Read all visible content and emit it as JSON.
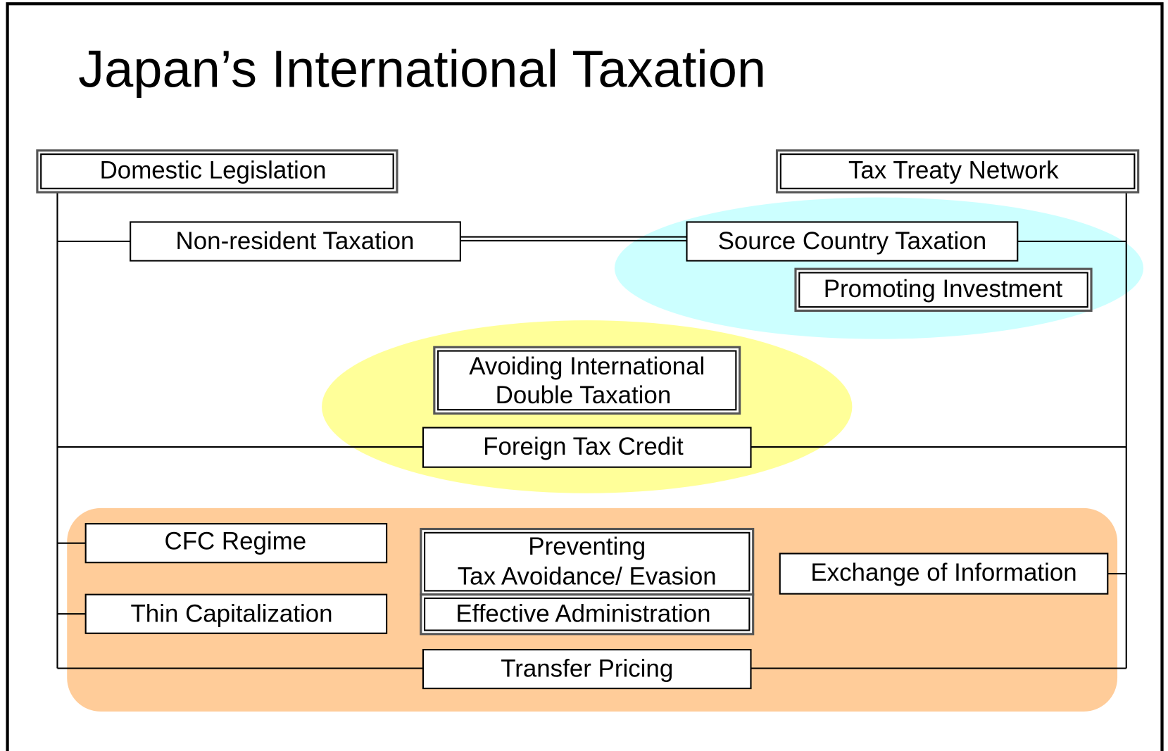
{
  "title": "Japan’s International Taxation",
  "nodes": [
    {
      "label": [
        "Domestic Legislation"
      ]
    },
    {
      "label": [
        "Tax Treaty Network"
      ]
    },
    {
      "label": [
        "Non-resident Taxation"
      ]
    },
    {
      "label": [
        "Source Country Taxation"
      ]
    },
    {
      "label": [
        "Promoting Investment"
      ]
    },
    {
      "label": [
        "Avoiding International",
        "Double Taxation"
      ]
    },
    {
      "label": [
        "Foreign Tax Credit"
      ]
    },
    {
      "label": [
        "CFC Regime"
      ]
    },
    {
      "label": [
        "Thin Capitalization"
      ]
    },
    {
      "label": [
        "Preventing",
        "Tax Avoidance/ Evasion"
      ]
    },
    {
      "label": [
        "Effective Administration"
      ]
    },
    {
      "label": [
        "Exchange of Information"
      ]
    },
    {
      "label": [
        "Transfer Pricing"
      ]
    }
  ]
}
